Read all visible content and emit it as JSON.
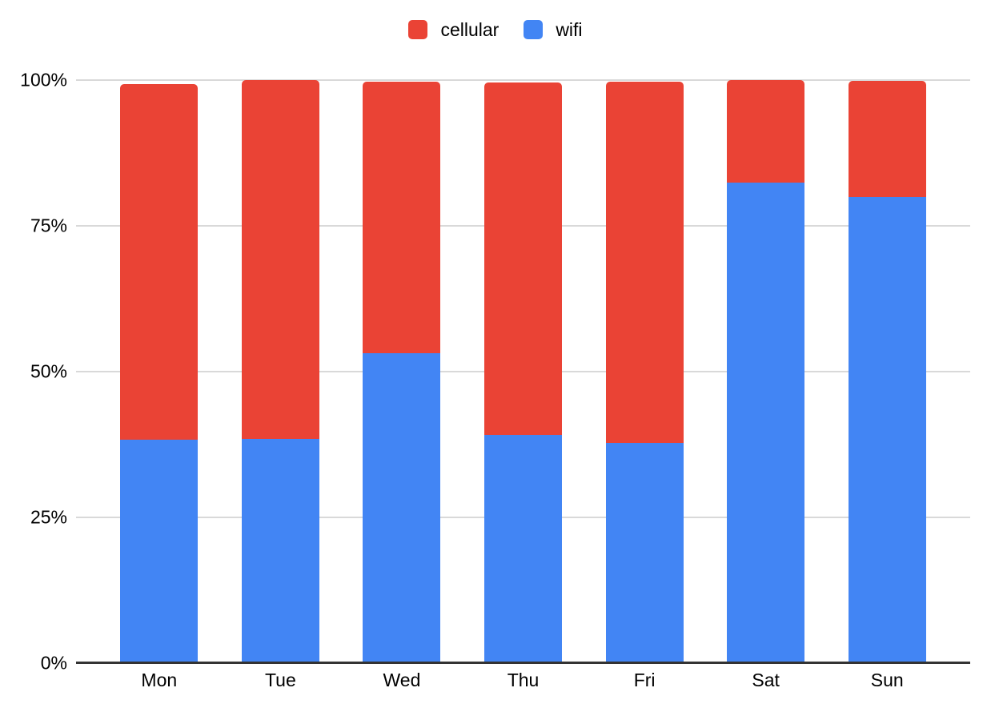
{
  "chart_data": {
    "type": "bar",
    "stacked": true,
    "categories": [
      "Mon",
      "Tue",
      "Wed",
      "Thu",
      "Fri",
      "Sat",
      "Sun"
    ],
    "series": [
      {
        "name": "cellular",
        "color": "#EA4335",
        "values": [
          61.0,
          61.5,
          46.5,
          60.4,
          61.9,
          17.6,
          19.9
        ]
      },
      {
        "name": "wifi",
        "color": "#4285F4",
        "values": [
          38.3,
          38.4,
          53.1,
          39.1,
          37.8,
          82.4,
          80.0
        ]
      }
    ],
    "title": "",
    "xlabel": "",
    "ylabel": "",
    "ylim": [
      0,
      100
    ],
    "grid": true,
    "legend_position": "top",
    "y_ticks": [
      {
        "label": "100%",
        "value": 100
      },
      {
        "label": "75%",
        "value": 75
      },
      {
        "label": "50%",
        "value": 50
      },
      {
        "label": "25%",
        "value": 25
      },
      {
        "label": "0%",
        "value": 0
      }
    ]
  },
  "colors": {
    "background": "#ffffff",
    "gridline": "#d9d9d9",
    "axis_line": "#333333",
    "text": "#000000"
  }
}
